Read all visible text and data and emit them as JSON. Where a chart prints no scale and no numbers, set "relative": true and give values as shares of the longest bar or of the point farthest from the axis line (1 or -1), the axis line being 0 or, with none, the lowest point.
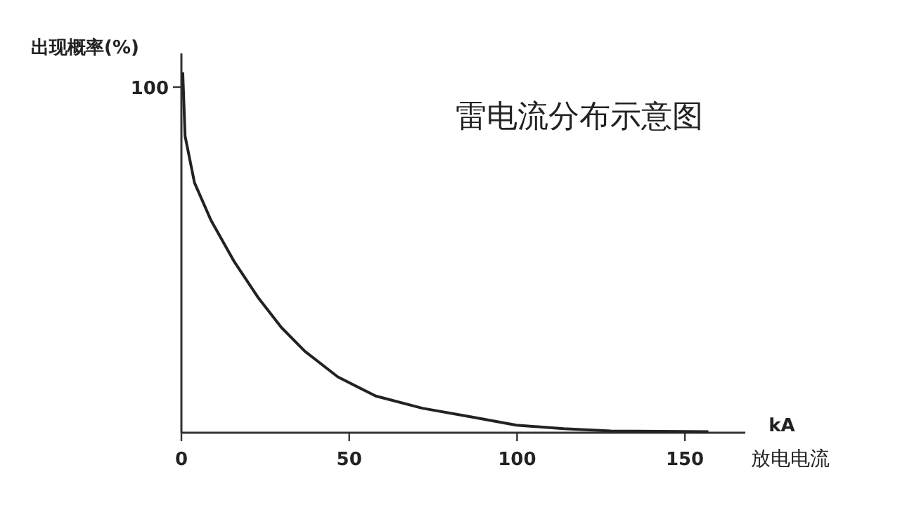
{
  "chart_data": {
    "type": "line",
    "relative": true,
    "title": "雷电流分布示意图",
    "ylabel": "出现概率(%)",
    "xlabel": "放电电流",
    "annotations": [
      "kA",
      "100"
    ],
    "x": [
      0.4,
      1.1,
      3.9,
      8.8,
      15.8,
      22.8,
      29.8,
      36.8,
      46.6,
      57.9,
      71.8,
      85.8,
      99.8,
      113.9,
      127.9,
      157
    ],
    "series": [
      {
        "color": "#222222",
        "values": [
          1,
          0.823,
          0.694,
          0.59,
          0.474,
          0.376,
          0.292,
          0.226,
          0.155,
          0.102,
          0.068,
          0.045,
          0.021,
          0.011,
          0.005,
          0.003
        ]
      }
    ],
    "xlim": [
      0,
      168
    ],
    "xticks": [
      0,
      50,
      100,
      150
    ],
    "marker": "none",
    "line_style": "solid"
  }
}
